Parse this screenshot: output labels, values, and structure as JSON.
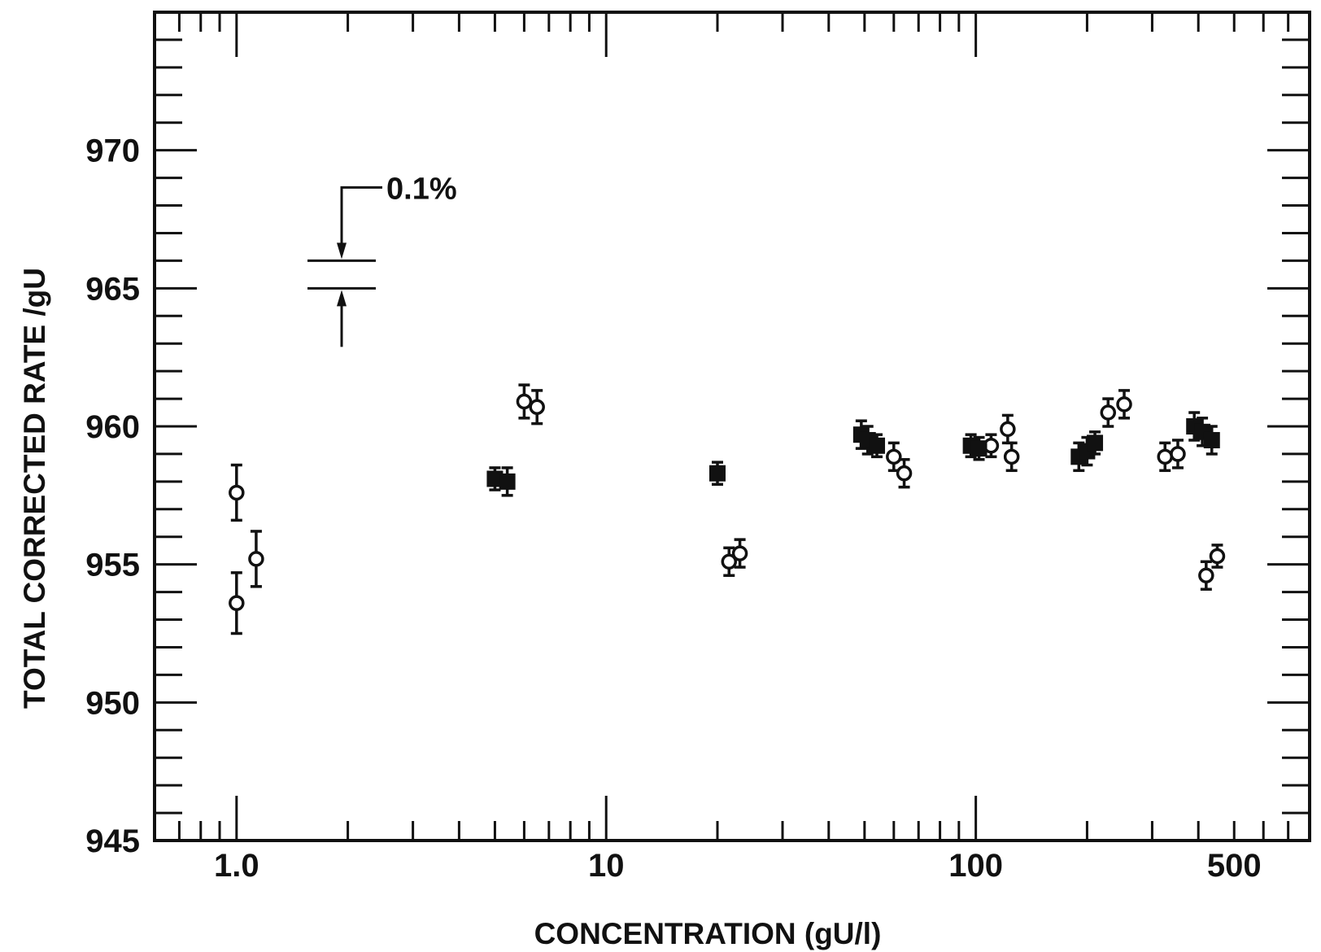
{
  "chart_data": {
    "type": "scatter",
    "title": "",
    "xlabel": "CONCENTRATION (gU/l)",
    "ylabel": "TOTAL CORRECTED RATE /gU",
    "x_scale": "log",
    "xlim": [
      0.6,
      800
    ],
    "ylim": [
      945,
      975
    ],
    "x_tick_labels": [
      {
        "value": 1,
        "label": "1.0"
      },
      {
        "value": 10,
        "label": "10"
      },
      {
        "value": 100,
        "label": "100"
      },
      {
        "value": 500,
        "label": "500"
      }
    ],
    "y_tick_labels": [
      {
        "value": 945,
        "label": "945"
      },
      {
        "value": 950,
        "label": "950"
      },
      {
        "value": 955,
        "label": "955"
      },
      {
        "value": 960,
        "label": "960"
      },
      {
        "value": 965,
        "label": "965"
      },
      {
        "value": 970,
        "label": "970"
      }
    ],
    "grid": false,
    "annotation": {
      "text": "0.1%",
      "upper_value": 966.0,
      "lower_value": 965.0
    },
    "series": [
      {
        "marker": "open-circle",
        "color": "#111111",
        "points": [
          {
            "x": 1.0,
            "y": 957.6,
            "err": 1.0
          },
          {
            "x": 1.0,
            "y": 953.6,
            "err": 1.1
          },
          {
            "x": 1.13,
            "y": 955.2,
            "err": 1.0
          },
          {
            "x": 6.0,
            "y": 960.9,
            "err": 0.6
          },
          {
            "x": 6.5,
            "y": 960.7,
            "err": 0.6
          },
          {
            "x": 21.5,
            "y": 955.1,
            "err": 0.5
          },
          {
            "x": 23.0,
            "y": 955.4,
            "err": 0.5
          },
          {
            "x": 60.0,
            "y": 958.9,
            "err": 0.5
          },
          {
            "x": 64.0,
            "y": 958.3,
            "err": 0.5
          },
          {
            "x": 110.0,
            "y": 959.3,
            "err": 0.4
          },
          {
            "x": 122.0,
            "y": 959.9,
            "err": 0.5
          },
          {
            "x": 125.0,
            "y": 958.9,
            "err": 0.5
          },
          {
            "x": 228.0,
            "y": 960.5,
            "err": 0.5
          },
          {
            "x": 252.0,
            "y": 960.8,
            "err": 0.5
          },
          {
            "x": 325.0,
            "y": 958.9,
            "err": 0.5
          },
          {
            "x": 352.0,
            "y": 959.0,
            "err": 0.5
          },
          {
            "x": 420.0,
            "y": 954.6,
            "err": 0.5
          },
          {
            "x": 450.0,
            "y": 955.3,
            "err": 0.4
          }
        ]
      },
      {
        "marker": "filled-square",
        "color": "#111111",
        "points": [
          {
            "x": 5.0,
            "y": 958.1,
            "err": 0.4
          },
          {
            "x": 5.4,
            "y": 958.0,
            "err": 0.5
          },
          {
            "x": 20.0,
            "y": 958.3,
            "err": 0.4
          },
          {
            "x": 49.0,
            "y": 959.7,
            "err": 0.5
          },
          {
            "x": 51.0,
            "y": 959.5,
            "err": 0.5
          },
          {
            "x": 54.0,
            "y": 959.3,
            "err": 0.4
          },
          {
            "x": 97.0,
            "y": 959.3,
            "err": 0.4
          },
          {
            "x": 102.0,
            "y": 959.2,
            "err": 0.4
          },
          {
            "x": 190.0,
            "y": 958.9,
            "err": 0.5
          },
          {
            "x": 200.0,
            "y": 959.1,
            "err": 0.5
          },
          {
            "x": 210.0,
            "y": 959.4,
            "err": 0.4
          },
          {
            "x": 390.0,
            "y": 960.0,
            "err": 0.5
          },
          {
            "x": 410.0,
            "y": 959.8,
            "err": 0.5
          },
          {
            "x": 435.0,
            "y": 959.5,
            "err": 0.5
          }
        ]
      }
    ]
  }
}
